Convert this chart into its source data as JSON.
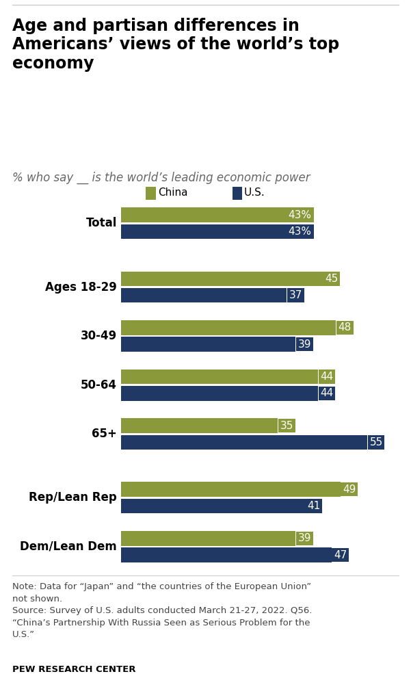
{
  "title": "Age and partisan differences in\nAmericans’ views of the world’s top\neconomy",
  "subtitle": "% who say __ is the world’s leading economic power",
  "categories": [
    "Total",
    "Ages 18-29",
    "30-49",
    "50-64",
    "65+",
    "Rep/Lean Rep",
    "Dem/Lean Dem"
  ],
  "china_values": [
    43,
    45,
    48,
    44,
    35,
    49,
    39
  ],
  "us_values": [
    43,
    37,
    39,
    44,
    55,
    41,
    47
  ],
  "china_color": "#8a9a3a",
  "us_color": "#1f3864",
  "note_text": "Note: Data for “Japan” and “the countries of the European Union”\nnot shown.\nSource: Survey of U.S. adults conducted March 21-27, 2022. Q56.\n“China’s Partnership With Russia Seen as Serious Problem for the\nU.S.”",
  "source_bold": "PEW RESEARCH CENTER",
  "legend_china": "China",
  "legend_us": "U.S.",
  "xlim": [
    0,
    62
  ],
  "background_color": "#ffffff",
  "title_fontsize": 17,
  "subtitle_fontsize": 12,
  "label_fontsize": 11,
  "note_fontsize": 9.5,
  "category_fontsize": 12
}
